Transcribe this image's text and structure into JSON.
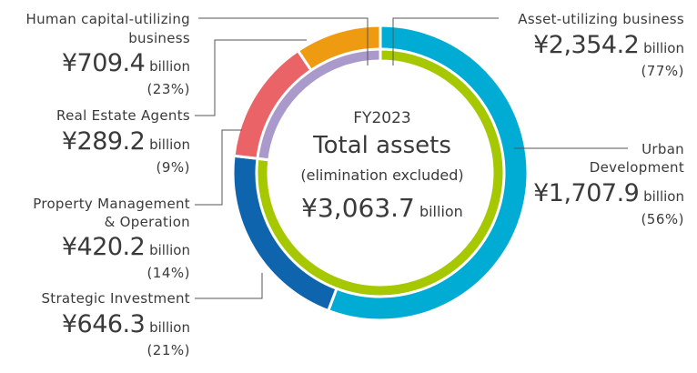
{
  "chart_data": {
    "type": "pie",
    "variant": "nested-donut",
    "center": {
      "year": "FY2023",
      "title": "Total assets",
      "subtitle": "(elimination excluded)",
      "total": "¥3,063.7",
      "total_unit": "billion"
    },
    "unit": "billion",
    "total_value": 3063.7,
    "outer_ring": [
      {
        "id": "urban",
        "name": "Urban Development",
        "value": 1707.9,
        "amount": "¥1,707.9",
        "unit": "billion",
        "percent": "(56%)",
        "color": "#00ACD4"
      },
      {
        "id": "strategic",
        "name": "Strategic Investment",
        "value": 646.3,
        "amount": "¥646.3",
        "unit": "billion",
        "percent": "(21%)",
        "color": "#0E65AD"
      },
      {
        "id": "property",
        "name": "Property Management & Operation",
        "value": 420.2,
        "amount": "¥420.2",
        "unit": "billion",
        "percent": "(14%)",
        "color": "#EA6366"
      },
      {
        "id": "realestate",
        "name": "Real Estate Agents",
        "value": 289.2,
        "amount": "¥289.2",
        "unit": "billion",
        "percent": "(9%)",
        "color": "#EF9B12"
      }
    ],
    "inner_ring": [
      {
        "id": "asset",
        "name": "Asset-utilizing business",
        "value": 2354.2,
        "amount": "¥2,354.2",
        "unit": "billion",
        "percent": "(77%)",
        "color": "#A5C800"
      },
      {
        "id": "human",
        "name": "Human capital-utilizing business",
        "value": 709.4,
        "amount": "¥709.4",
        "unit": "billion",
        "percent": "(23%)",
        "color": "#A99ACB"
      }
    ]
  },
  "labels": {
    "asset": {
      "line1": "Asset-utilizing business",
      "amount": "¥2,354.2",
      "unit": "billion",
      "percent": "(77%)"
    },
    "urban": {
      "line1": "Urban",
      "line2": "Development",
      "amount": "¥1,707.9",
      "unit": "billion",
      "percent": "(56%)"
    },
    "human": {
      "line1": "Human capital-utilizing",
      "line2": "business",
      "amount": "¥709.4",
      "unit": "billion",
      "percent": "(23%)"
    },
    "realestate": {
      "line1": "Real Estate Agents",
      "amount": "¥289.2",
      "unit": "billion",
      "percent": "(9%)"
    },
    "property": {
      "line1": "Property Management",
      "line2": "& Operation",
      "amount": "¥420.2",
      "unit": "billion",
      "percent": "(14%)"
    },
    "strategic": {
      "line1": "Strategic Investment",
      "amount": "¥646.3",
      "unit": "billion",
      "percent": "(21%)"
    }
  }
}
